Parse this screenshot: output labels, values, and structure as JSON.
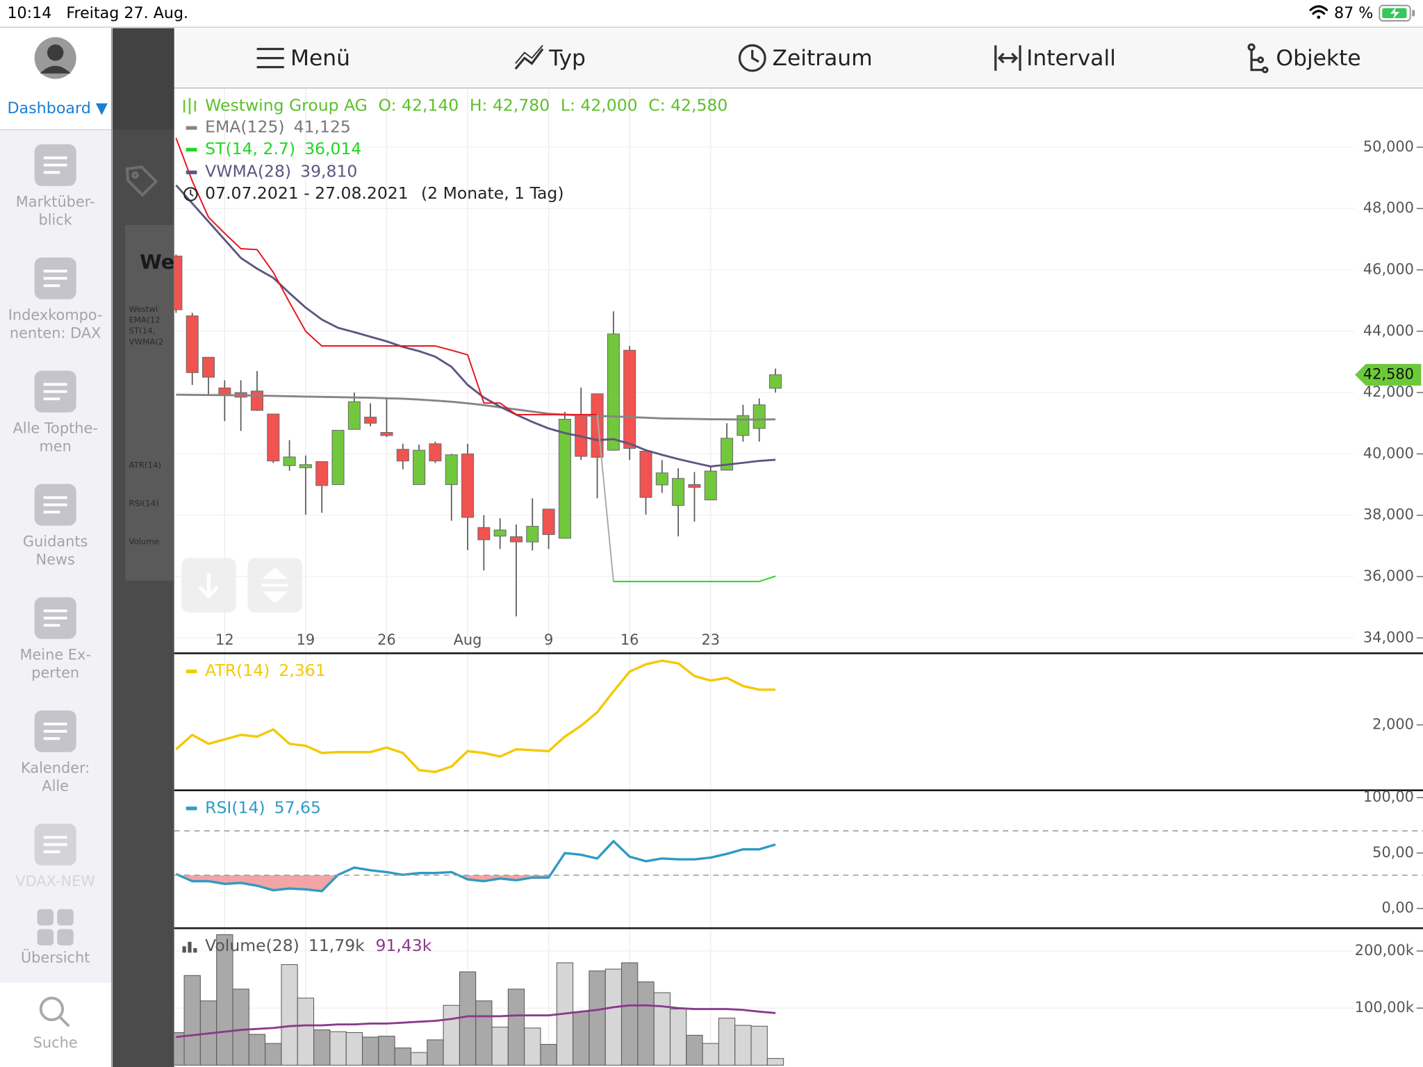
{
  "status_bar": {
    "time": "10:14",
    "date": "Freitag 27. Aug.",
    "battery": "87 %"
  },
  "sidebar": {
    "dashboard": "Dashboard ▼",
    "items": [
      {
        "lines": [
          "Marktüber-",
          "blick"
        ]
      },
      {
        "lines": [
          "Indexkompo-",
          "nenten: DAX"
        ]
      },
      {
        "lines": [
          "Alle Topthe-",
          "men"
        ]
      },
      {
        "lines": [
          "Guidants",
          "News"
        ]
      },
      {
        "lines": [
          "Meine Ex-",
          "perten"
        ]
      },
      {
        "lines": [
          "Kalender:",
          "Alle"
        ]
      },
      {
        "lines": [
          "VDAX-NEW"
        ]
      },
      {
        "lines": [
          "Übersicht"
        ]
      }
    ],
    "search": "Suche"
  },
  "toolbar": {
    "items": [
      "Menü",
      "Typ",
      "Zeitraum",
      "Intervall",
      "Objekte"
    ]
  },
  "thumbnail": {
    "title": "Wes",
    "lines": [
      "Westwi",
      "EMA(12",
      "ST(14,",
      "VWMA(2"
    ],
    "panels": [
      "ATR(14)",
      "RSI(14)",
      "Volume"
    ]
  },
  "chart_data": [
    {
      "type": "candlestick",
      "title": "Westwing Group AG",
      "ohlc_labels": [
        "O: 42,140",
        "H: 42,780",
        "L: 42,000",
        "C: 42,580"
      ],
      "date_range": "07.07.2021 - 27.08.2021",
      "date_span": "(2 Monate, 1 Tag)",
      "categories": [
        null,
        null,
        null,
        "12",
        null,
        null,
        null,
        null,
        "19",
        null,
        null,
        null,
        null,
        "26",
        null,
        null,
        null,
        null,
        "Aug",
        null,
        null,
        null,
        null,
        "9",
        null,
        null,
        null,
        null,
        "16",
        null,
        null,
        null,
        null,
        "23",
        null,
        null,
        null,
        null
      ],
      "open": [
        46450,
        44500,
        43150,
        42150,
        42000,
        42050,
        41300,
        39620,
        39550,
        39750,
        39000,
        40800,
        41200,
        40700,
        40150,
        39000,
        40330,
        39000,
        40000,
        37600,
        37320,
        37300,
        37130,
        38200,
        37250,
        41250,
        41960,
        40120,
        43380,
        40090,
        38990,
        38320,
        39000,
        38500,
        39470,
        40600,
        40830,
        42140
      ],
      "high": [
        46500,
        44600,
        43150,
        42400,
        42400,
        42700,
        41300,
        40450,
        39950,
        39750,
        40770,
        42000,
        41650,
        41800,
        40330,
        40300,
        40400,
        40000,
        40330,
        38000,
        37900,
        37700,
        38550,
        38200,
        41370,
        42160,
        41960,
        44650,
        43520,
        40090,
        39800,
        39530,
        39410,
        39620,
        41000,
        41600,
        41810,
        42780
      ],
      "low": [
        44600,
        42250,
        41900,
        41070,
        40750,
        41400,
        39700,
        39450,
        38020,
        38080,
        39000,
        40800,
        40900,
        40550,
        39500,
        39000,
        39700,
        37820,
        36860,
        36200,
        36900,
        34700,
        36850,
        36900,
        37250,
        39800,
        38550,
        40120,
        39800,
        38020,
        38730,
        37310,
        37790,
        38500,
        39470,
        40400,
        40400,
        42000
      ],
      "close": [
        44700,
        42650,
        42500,
        41900,
        41850,
        41420,
        39770,
        39900,
        39650,
        38970,
        40770,
        41700,
        41000,
        40600,
        39770,
        40120,
        39770,
        39970,
        37930,
        37200,
        37520,
        37130,
        37640,
        37370,
        41130,
        39920,
        39890,
        43910,
        40180,
        38580,
        39380,
        39200,
        38910,
        39440,
        40510,
        41250,
        41600,
        42580
      ],
      "up_color": "#72c83c",
      "down_color": "#f05350",
      "ylim": [
        33500,
        51900
      ],
      "yticks": [
        {
          "value": 34000,
          "label": "34,000"
        },
        {
          "value": 36000,
          "label": "36,000"
        },
        {
          "value": 38000,
          "label": "38,000"
        },
        {
          "value": 40000,
          "label": "40,000"
        },
        {
          "value": 42000,
          "label": "42,000"
        },
        {
          "value": 44000,
          "label": "44,000"
        },
        {
          "value": 46000,
          "label": "46,000"
        },
        {
          "value": 48000,
          "label": "48,000"
        },
        {
          "value": 50000,
          "label": "50,000"
        }
      ],
      "grid": true,
      "last_price": {
        "value": 42580,
        "label": "42,580"
      },
      "series": [
        {
          "name": "EMA(125)",
          "value_label": "41,125",
          "color": "#858585",
          "values": [
            41930,
            41925,
            41920,
            41915,
            41910,
            41900,
            41890,
            41880,
            41870,
            41860,
            41850,
            41840,
            41830,
            41815,
            41800,
            41770,
            41740,
            41700,
            41650,
            41590,
            41520,
            41450,
            41380,
            41310,
            41280,
            41260,
            41240,
            41220,
            41200,
            41180,
            41160,
            41150,
            41140,
            41130,
            41125,
            41120,
            41120,
            41125
          ]
        },
        {
          "name": "VWMA(28)",
          "value_label": "39,810",
          "color": "#5e5480",
          "values": [
            48760,
            48170,
            47575,
            46980,
            46390,
            46040,
            45740,
            45240,
            44770,
            44380,
            44110,
            43970,
            43820,
            43670,
            43490,
            43350,
            43170,
            42840,
            42250,
            41840,
            41540,
            41280,
            41040,
            40830,
            40680,
            40570,
            40450,
            40480,
            40330,
            40120,
            39970,
            39830,
            39710,
            39590,
            39650,
            39710,
            39770,
            39810
          ]
        }
      ],
      "supertrend": {
        "name": "ST(14, 2.7)",
        "value_label": "36,014",
        "color": "#1fd81f",
        "segments": [
          {
            "color": "#e8141a",
            "values": [
              50300,
              48900,
              47720,
              47190,
              46690,
              46660,
              45920,
              44940,
              44000,
              43520,
              43520,
              43520,
              43520,
              43520,
              43520,
              43520,
              43520,
              43380,
              43230,
              41660,
              41660,
              41280,
              41280,
              41280,
              41280,
              41280,
              41280,
              null,
              null,
              null,
              null,
              null,
              null,
              null,
              null,
              null,
              null,
              null
            ]
          },
          {
            "color": "#aaaaaa",
            "values": [
              null,
              null,
              null,
              null,
              null,
              null,
              null,
              null,
              null,
              null,
              null,
              null,
              null,
              null,
              null,
              null,
              null,
              null,
              null,
              null,
              null,
              null,
              null,
              null,
              null,
              null,
              41280,
              35840,
              null,
              null,
              null,
              null,
              null,
              null,
              null,
              null,
              null,
              null
            ]
          },
          {
            "color": "#1fd81f",
            "values": [
              null,
              null,
              null,
              null,
              null,
              null,
              null,
              null,
              null,
              null,
              null,
              null,
              null,
              null,
              null,
              null,
              null,
              null,
              null,
              null,
              null,
              null,
              null,
              null,
              null,
              null,
              null,
              35840,
              35840,
              35840,
              35840,
              35840,
              35840,
              35840,
              35840,
              35840,
              35840,
              36014
            ]
          }
        ]
      }
    },
    {
      "type": "line",
      "ylim": [
        1340,
        2715
      ],
      "yticks": [
        {
          "value": 2000,
          "label": "2,000"
        }
      ],
      "series": [
        {
          "name": "ATR(14)",
          "value_label": "2,361",
          "color": "#f5c800",
          "values": [
            1750,
            1898,
            1806,
            1852,
            1898,
            1880,
            1954,
            1806,
            1787,
            1713,
            1722,
            1722,
            1722,
            1768,
            1713,
            1537,
            1518,
            1574,
            1731,
            1713,
            1676,
            1750,
            1741,
            1731,
            1880,
            1991,
            2130,
            2343,
            2546,
            2620,
            2657,
            2630,
            2500,
            2454,
            2482,
            2398,
            2361,
            2361
          ]
        }
      ]
    },
    {
      "type": "line",
      "ylim": [
        -17,
        105
      ],
      "yticks": [
        {
          "value": 0,
          "label": "0,00"
        },
        {
          "value": 50,
          "label": "50,00"
        },
        {
          "value": 100,
          "label": "100,00"
        }
      ],
      "levels": [
        30,
        70
      ],
      "oversold_fill": "#f2a5a5",
      "series": [
        {
          "name": "RSI(14)",
          "value_label": "57,65",
          "color": "#2f9bc4",
          "values": [
            31.1,
            24.6,
            24.6,
            22.1,
            23,
            20.5,
            16.4,
            18,
            17.2,
            15.6,
            30.3,
            36.9,
            34.4,
            32.8,
            30.3,
            32,
            32,
            32.8,
            26.2,
            24.6,
            27,
            25.4,
            27.9,
            27.9,
            50,
            48.4,
            45.1,
            60.7,
            46.7,
            42.6,
            45.1,
            44.3,
            44.3,
            45.9,
            49.2,
            53.3,
            53.3,
            57.65
          ]
        }
      ]
    },
    {
      "type": "bar",
      "title": "Volume(28)",
      "value_label": "11,79k",
      "up_color": "#d6d6d6",
      "down_color": "#a9a9a9",
      "values": [
        57100,
        157100,
        112700,
        228600,
        133300,
        54000,
        38100,
        176200,
        117500,
        61900,
        58700,
        57100,
        49200,
        50800,
        30200,
        22200,
        44400,
        104800,
        163500,
        112700,
        66700,
        133300,
        65100,
        36500,
        179400,
        93700,
        165100,
        168300,
        179400,
        146000,
        127000,
        98400,
        52400,
        38100,
        82500,
        69800,
        68300,
        11790
      ],
      "ylim": [
        0,
        240000
      ],
      "yticks": [
        {
          "value": 100000,
          "label": "100,00k"
        },
        {
          "value": 200000,
          "label": "200,00k"
        }
      ],
      "ma": {
        "value_label": "91,43k",
        "color": "#8b3a8b",
        "values": [
          49200,
          52400,
          55600,
          58700,
          61900,
          63500,
          65100,
          68300,
          69800,
          69800,
          71400,
          71400,
          73000,
          73000,
          74600,
          76200,
          77800,
          81000,
          85700,
          85700,
          85700,
          87300,
          87300,
          87300,
          90500,
          93700,
          96800,
          101600,
          104800,
          104800,
          103200,
          100000,
          98400,
          98400,
          98400,
          96800,
          93700,
          91430
        ]
      }
    }
  ]
}
